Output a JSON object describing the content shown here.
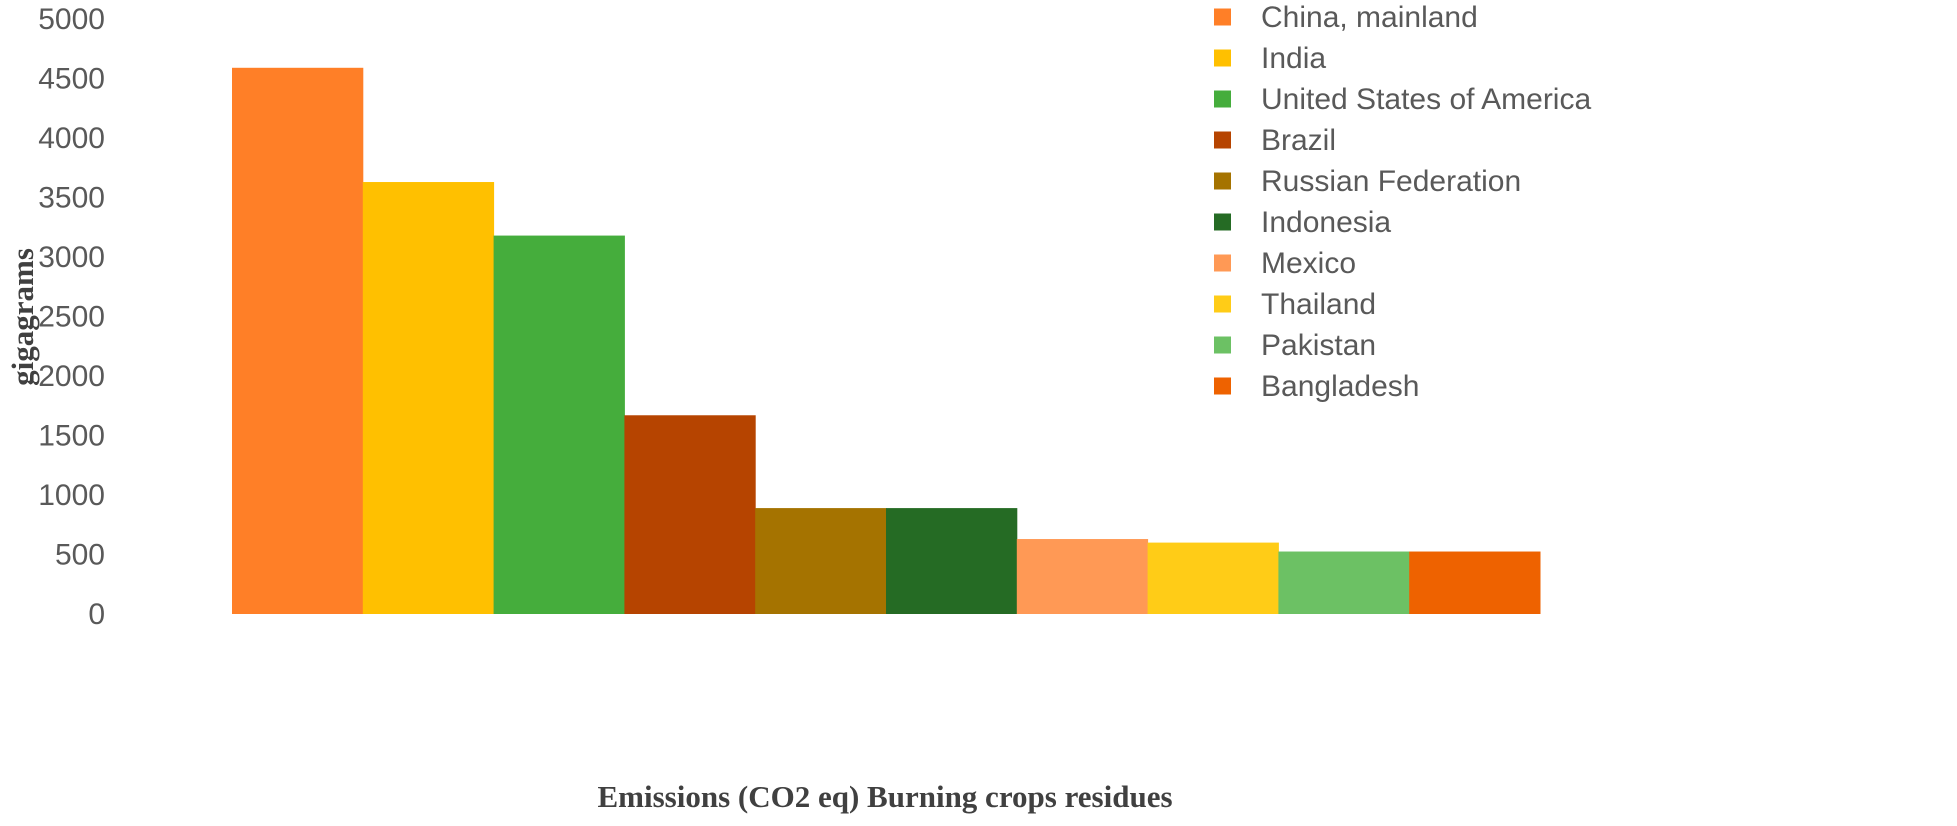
{
  "chart_data": {
    "type": "bar",
    "xlabel": "Emissions (CO2 eq) Burning crops residues",
    "ylabel": "gigagrams",
    "ylim": [
      0,
      5000
    ],
    "yticks": [
      "0",
      "500",
      "1000",
      "1500",
      "2000",
      "2500",
      "3000",
      "3500",
      "4000",
      "4500",
      "5000"
    ],
    "grid": false,
    "legend_position": "top-right",
    "series": [
      {
        "name": "China, mainland",
        "value": 4590,
        "color": "#FF7F27"
      },
      {
        "name": "India",
        "value": 3630,
        "color": "#FFC000"
      },
      {
        "name": "United States of America",
        "value": 3180,
        "color": "#45AD3C"
      },
      {
        "name": "Brazil",
        "value": 1670,
        "color": "#B64400"
      },
      {
        "name": "Russian Federation",
        "value": 890,
        "color": "#A57300"
      },
      {
        "name": "Indonesia",
        "value": 890,
        "color": "#256B24"
      },
      {
        "name": "Mexico",
        "value": 630,
        "color": "#FF9955"
      },
      {
        "name": "Thailand",
        "value": 600,
        "color": "#FFCC17"
      },
      {
        "name": "Pakistan",
        "value": 525,
        "color": "#6CC164"
      },
      {
        "name": "Bangladesh",
        "value": 525,
        "color": "#EE6200"
      }
    ]
  }
}
